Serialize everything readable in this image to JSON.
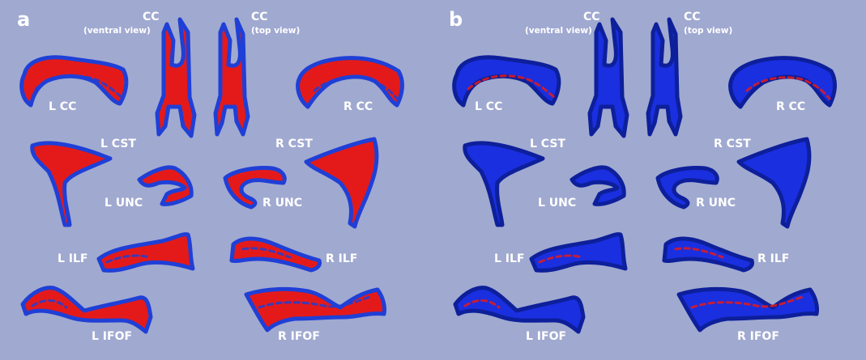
{
  "figure": {
    "panels": [
      {
        "letter": "a",
        "fill": "#e41a1a",
        "edge": "#1f3fd6",
        "accent": "#1f3fd6",
        "labels": {
          "cc_ventral_title": "CC",
          "cc_ventral_sub": "(ventral view)",
          "cc_top_title": "CC",
          "cc_top_sub": "(top view)",
          "l_cc": "L CC",
          "r_cc": "R CC",
          "l_cst": "L CST",
          "r_cst": "R CST",
          "l_unc": "L UNC",
          "r_unc": "R UNC",
          "l_ilf": "L ILF",
          "r_ilf": "R ILF",
          "l_ifof": "L IFOF",
          "r_ifof": "R IFOF"
        }
      },
      {
        "letter": "b",
        "fill": "#1a2fe0",
        "edge": "#0d1f9a",
        "accent": "#e41a1a",
        "labels": {
          "cc_ventral_title": "CC",
          "cc_ventral_sub": "(ventral view)",
          "cc_top_title": "CC",
          "cc_top_sub": "(top view)",
          "l_cc": "L CC",
          "r_cc": "R CC",
          "l_cst": "L CST",
          "r_cst": "R CST",
          "l_unc": "L UNC",
          "r_unc": "R UNC",
          "l_ilf": "L ILF",
          "r_ilf": "R ILF",
          "l_ifof": "L IFOF",
          "r_ifof": "R IFOF"
        }
      }
    ]
  }
}
